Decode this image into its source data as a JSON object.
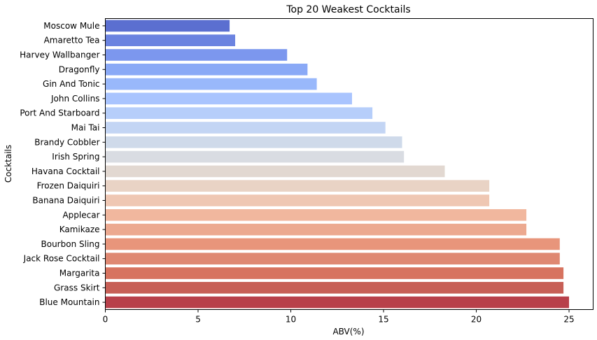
{
  "chart_data": {
    "type": "bar",
    "orientation": "horizontal",
    "title": "Top 20 Weakest Cocktails",
    "xlabel": "ABV(%)",
    "ylabel": "Cocktails",
    "xlim": [
      0,
      26.3
    ],
    "xticks": [
      0,
      5,
      10,
      15,
      20,
      25
    ],
    "grid": false,
    "legend": "none",
    "colormap": "coolwarm",
    "categories": [
      "Moscow Mule",
      "Amaretto Tea",
      "Harvey Wallbanger",
      "Dragonfly",
      "Gin And Tonic",
      "John Collins",
      "Port And Starboard",
      "Mai Tai",
      "Brandy Cobbler",
      "Irish Spring",
      "Havana Cocktail",
      "Frozen Daiquiri",
      "Banana Daiquiri",
      "Applecar",
      "Kamikaze",
      "Bourbon Sling",
      "Jack Rose Cocktail",
      "Margarita",
      "Grass Skirt",
      "Blue Mountain"
    ],
    "values": [
      6.7,
      7.0,
      9.8,
      10.9,
      11.4,
      13.3,
      14.4,
      15.1,
      16.0,
      16.1,
      18.3,
      20.7,
      20.7,
      22.7,
      22.7,
      24.5,
      24.5,
      24.7,
      24.7,
      25.0
    ],
    "colors": [
      "#5b6fd0",
      "#6b83e0",
      "#7c97ee",
      "#8aa9f6",
      "#99b8fb",
      "#a9c4fe",
      "#b6cefa",
      "#c3d5f4",
      "#cfdaea",
      "#d9dce2",
      "#e2d8d1",
      "#e9d3c5",
      "#efc7b3",
      "#f1b79e",
      "#eca990",
      "#e8957b",
      "#df8872",
      "#d7735f",
      "#c75f56",
      "#b8404a"
    ]
  }
}
